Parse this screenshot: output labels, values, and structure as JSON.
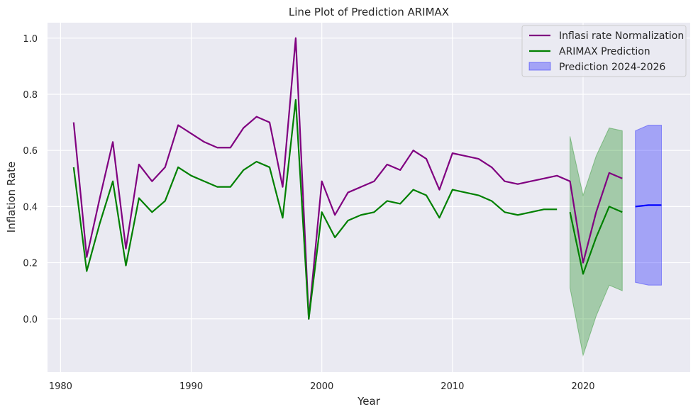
{
  "chart_data": {
    "type": "line",
    "title": "Line Plot of Prediction ARIMAX",
    "xlabel": "Year",
    "ylabel": "Inflation Rate",
    "xlim": [
      1979,
      2028.2
    ],
    "ylim": [
      -0.19,
      1.055
    ],
    "xticks": [
      1980,
      1990,
      2000,
      2010,
      2020
    ],
    "xtick_labels": [
      "1980",
      "1990",
      "2000",
      "2010",
      "2020"
    ],
    "yticks": [
      0.0,
      0.2,
      0.4,
      0.6,
      0.8,
      1.0
    ],
    "ytick_labels": [
      "0.0",
      "0.2",
      "0.4",
      "0.6",
      "0.8",
      "1.0"
    ],
    "grid": true,
    "legend_position": "top-right",
    "background": "#eaeaf2",
    "series": [
      {
        "name": "Inflasi rate Normalization",
        "color": "#800080",
        "x": [
          1981,
          1982,
          1983,
          1984,
          1985,
          1986,
          1987,
          1988,
          1989,
          1990,
          1991,
          1992,
          1993,
          1994,
          1995,
          1996,
          1997,
          1998,
          1999,
          2000,
          2001,
          2002,
          2003,
          2004,
          2005,
          2006,
          2007,
          2008,
          2009,
          2010,
          2011,
          2012,
          2013,
          2014,
          2015,
          2016,
          2017,
          2018,
          2019,
          2020,
          2021,
          2022,
          2023
        ],
        "y": [
          0.7,
          0.22,
          0.43,
          0.63,
          0.25,
          0.55,
          0.49,
          0.54,
          0.69,
          0.66,
          0.63,
          0.61,
          0.61,
          0.68,
          0.72,
          0.7,
          0.47,
          1.0,
          0.0,
          0.49,
          0.37,
          0.45,
          0.47,
          0.49,
          0.55,
          0.53,
          0.6,
          0.57,
          0.46,
          0.59,
          0.58,
          0.57,
          0.54,
          0.49,
          0.48,
          0.49,
          0.5,
          0.51,
          0.49,
          0.2,
          0.38,
          0.52,
          0.5
        ]
      },
      {
        "name": "ARIMAX Prediction",
        "color": "#008000",
        "x": [
          1981,
          1982,
          1983,
          1984,
          1985,
          1986,
          1987,
          1988,
          1989,
          1990,
          1991,
          1992,
          1993,
          1994,
          1995,
          1996,
          1997,
          1998,
          1999,
          2000,
          2001,
          2002,
          2003,
          2004,
          2005,
          2006,
          2007,
          2008,
          2009,
          2010,
          2011,
          2012,
          2013,
          2014,
          2015,
          2016,
          2017,
          2018
        ],
        "y": [
          0.54,
          0.17,
          0.34,
          0.49,
          0.19,
          0.43,
          0.38,
          0.42,
          0.54,
          0.51,
          0.49,
          0.47,
          0.47,
          0.53,
          0.56,
          0.54,
          0.36,
          0.78,
          0.0,
          0.38,
          0.29,
          0.35,
          0.37,
          0.38,
          0.42,
          0.41,
          0.46,
          0.44,
          0.36,
          0.46,
          0.45,
          0.44,
          0.42,
          0.38,
          0.37,
          0.38,
          0.39,
          0.39
        ]
      },
      {
        "name": "",
        "color": "#008000",
        "x": [
          2019,
          2020,
          2021,
          2022,
          2023
        ],
        "y": [
          0.38,
          0.16,
          0.29,
          0.4,
          0.38
        ]
      },
      {
        "name": "",
        "color": "#0000ff",
        "x": [
          2024,
          2025,
          2026
        ],
        "y": [
          0.4,
          0.405,
          0.405
        ]
      }
    ],
    "bands": [
      {
        "name": "",
        "color": "#008000",
        "x": [
          2019,
          2020,
          2021,
          2022,
          2023
        ],
        "lower": [
          0.11,
          -0.13,
          0.01,
          0.12,
          0.1
        ],
        "upper": [
          0.65,
          0.44,
          0.58,
          0.68,
          0.67
        ]
      },
      {
        "name": "Prediction 2024-2026",
        "color": "#0000ff",
        "x": [
          2024,
          2025,
          2026
        ],
        "lower": [
          0.13,
          0.12,
          0.12
        ],
        "upper": [
          0.67,
          0.69,
          0.69
        ]
      }
    ],
    "legend": [
      {
        "label": "Inflasi rate Normalization",
        "kind": "line",
        "color": "#800080"
      },
      {
        "label": "ARIMAX Prediction",
        "kind": "line",
        "color": "#008000"
      },
      {
        "label": "Prediction 2024-2026",
        "kind": "patch",
        "color": "#0000ff"
      }
    ]
  }
}
